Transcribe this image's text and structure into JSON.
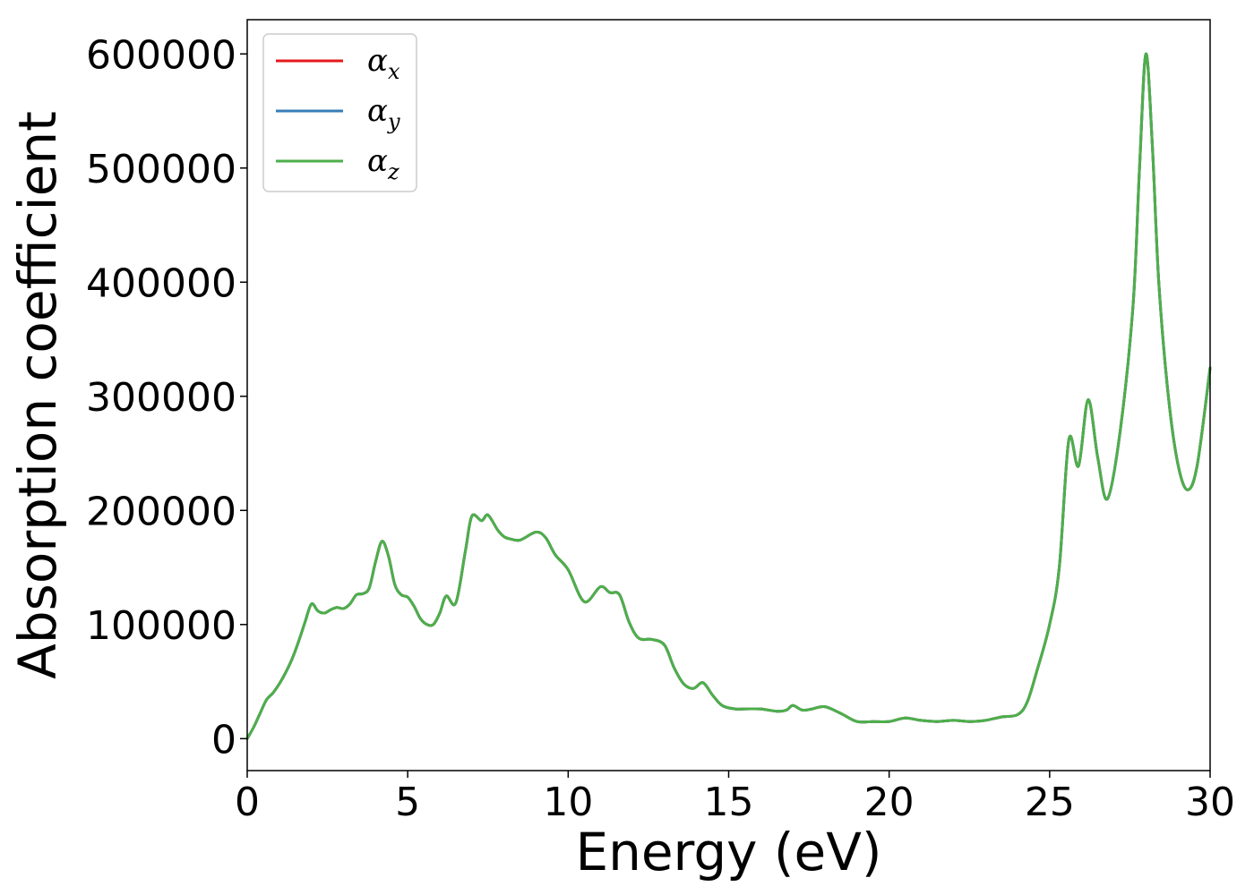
{
  "chart_data": {
    "type": "line",
    "title": "",
    "xlabel": "Energy (eV)",
    "ylabel": "Absorption coefficient",
    "xlim": [
      0,
      30
    ],
    "ylim": [
      -28000,
      630000
    ],
    "xticks": [
      0,
      5,
      10,
      15,
      20,
      25,
      30
    ],
    "xtick_labels": [
      "0",
      "5",
      "10",
      "15",
      "20",
      "25",
      "30"
    ],
    "yticks": [
      0,
      100000,
      200000,
      300000,
      400000,
      500000,
      600000
    ],
    "ytick_labels": [
      "0",
      "100000",
      "200000",
      "300000",
      "400000",
      "500000",
      "600000"
    ],
    "grid": false,
    "legend_position": "top-left",
    "series": [
      {
        "name": "α",
        "subscript": "x",
        "color": "#e41a1c"
      },
      {
        "name": "α",
        "subscript": "y",
        "color": "#377eb8"
      },
      {
        "name": "α",
        "subscript": "z",
        "color": "#4daf4a"
      }
    ],
    "x": [
      0,
      0.2,
      0.4,
      0.6,
      0.8,
      1.0,
      1.2,
      1.4,
      1.6,
      1.8,
      2.0,
      2.2,
      2.4,
      2.6,
      2.8,
      3.0,
      3.2,
      3.4,
      3.6,
      3.8,
      4.0,
      4.2,
      4.4,
      4.6,
      4.8,
      5.0,
      5.2,
      5.4,
      5.6,
      5.8,
      6.0,
      6.2,
      6.5,
      6.8,
      7.0,
      7.3,
      7.5,
      7.8,
      8.0,
      8.2,
      8.5,
      9.0,
      9.3,
      9.6,
      10.0,
      10.5,
      11.0,
      11.3,
      11.6,
      11.9,
      12.2,
      12.6,
      13.0,
      13.3,
      13.6,
      13.9,
      14.2,
      14.5,
      14.8,
      15.2,
      15.5,
      16.0,
      16.5,
      16.8,
      17.0,
      17.3,
      17.6,
      18.0,
      18.5,
      19.0,
      19.5,
      20.0,
      20.5,
      21.0,
      21.5,
      22.0,
      22.5,
      23.0,
      23.5,
      24.0,
      24.3,
      24.6,
      25.0,
      25.3,
      25.6,
      25.9,
      26.2,
      26.5,
      26.8,
      27.2,
      27.6,
      27.8,
      28.0,
      28.2,
      28.4,
      28.7,
      29.0,
      29.3,
      29.6,
      30.0
    ],
    "y": [
      0,
      10000,
      22000,
      34000,
      40000,
      48000,
      58000,
      70000,
      85000,
      102000,
      118000,
      112000,
      110000,
      113000,
      115000,
      114000,
      118000,
      126000,
      127000,
      132000,
      155000,
      173000,
      160000,
      135000,
      126000,
      124000,
      116000,
      105000,
      100000,
      100000,
      110000,
      125000,
      119000,
      165000,
      195000,
      191000,
      196000,
      183000,
      177000,
      175000,
      174000,
      181000,
      176000,
      161000,
      148000,
      120000,
      133000,
      128000,
      126000,
      102000,
      88000,
      87000,
      82000,
      62000,
      48000,
      44000,
      49000,
      38000,
      29000,
      26000,
      26000,
      26000,
      24000,
      25000,
      29000,
      25000,
      26000,
      28000,
      22000,
      15000,
      15000,
      15000,
      18000,
      16000,
      15000,
      16000,
      15000,
      16000,
      19000,
      21000,
      32000,
      59000,
      100000,
      150000,
      262000,
      239000,
      297000,
      246000,
      210000,
      270000,
      380000,
      500000,
      600000,
      520000,
      400000,
      300000,
      240000,
      218000,
      240000,
      325000
    ]
  }
}
